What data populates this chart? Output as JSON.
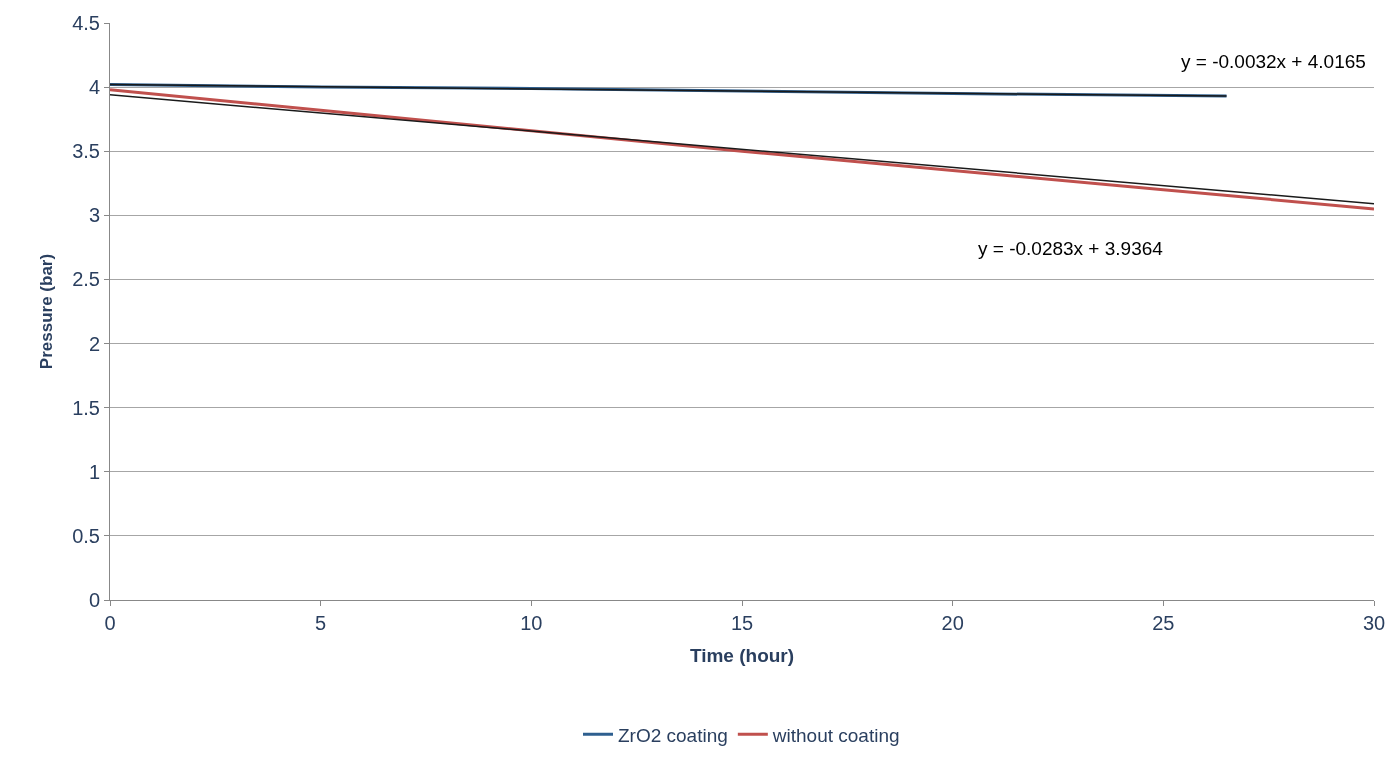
{
  "chart_data": {
    "type": "line",
    "xlabel": "Time (hour)",
    "ylabel": "Pressure (bar)",
    "xlim": [
      0,
      30
    ],
    "xticks": [
      0,
      5,
      10,
      15,
      20,
      25,
      30
    ],
    "ylim": [
      0,
      4.5
    ],
    "yticks": [
      0,
      0.5,
      1,
      1.5,
      2,
      2.5,
      3,
      3.5,
      4,
      4.5
    ],
    "grid": "y",
    "legend": "bottom",
    "marker": "none",
    "line_style": "solid",
    "series": [
      {
        "name": "ZrO2 coating",
        "color": "#2e5f8f",
        "x": [
          0,
          5,
          10,
          15,
          20,
          26.5
        ],
        "values": [
          4.02,
          4.0,
          3.99,
          3.97,
          3.95,
          3.93
        ]
      },
      {
        "name": "without coating",
        "color": "#c0504d",
        "x": [
          0,
          5,
          10,
          15,
          20,
          25,
          30
        ],
        "values": [
          3.98,
          3.82,
          3.66,
          3.5,
          3.35,
          3.2,
          3.05
        ]
      },
      {
        "color": "#1a1a1a",
        "x": [
          0,
          26.5
        ],
        "values": [
          4.02,
          3.93
        ]
      },
      {
        "color": "#1a1a1a",
        "x": [
          0,
          30
        ],
        "values": [
          3.94,
          3.09
        ]
      }
    ],
    "annotations": [
      "y = -0.0032x + 4.0165",
      "y = -0.0283x + 3.9364"
    ]
  }
}
